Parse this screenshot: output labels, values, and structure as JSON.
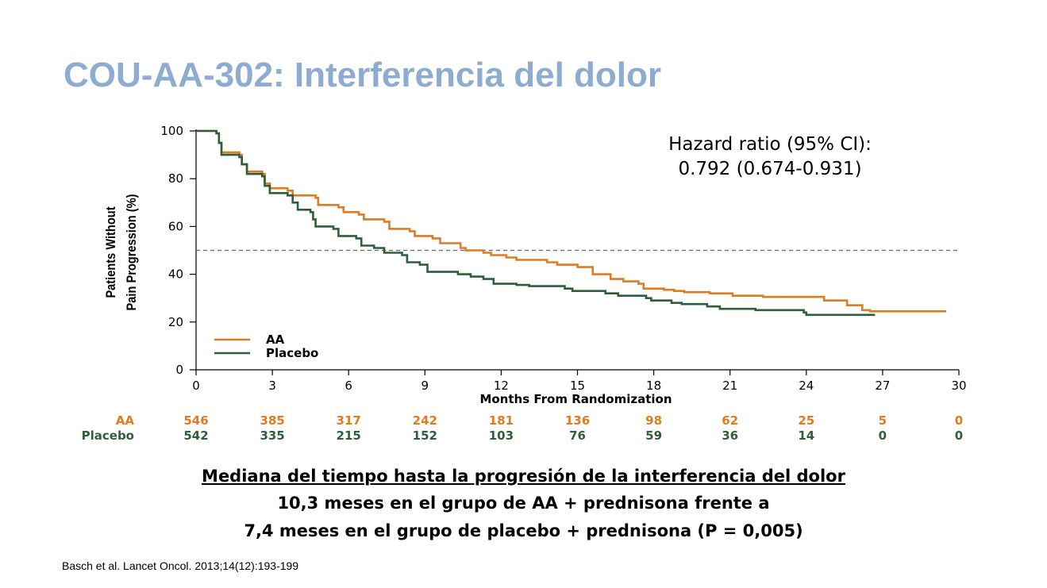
{
  "slide": {
    "title": "COU-AA-302: Interferencia del dolor",
    "caption_line1": "Mediana del tiempo hasta la progresión de la interferencia del dolor",
    "caption_line2": "10,3 meses en el grupo de AA + prednisona frente a",
    "caption_line3": "7,4 meses en el grupo de placebo + prednisona (P = 0,005)",
    "citation": "Basch et al. Lancet Oncol. 2013;14(12):193-199"
  },
  "chart_data": {
    "type": "line",
    "step": true,
    "xlabel": "Months From Randomization",
    "ylabel_line1": "Patients Without",
    "ylabel_line2": "Pain Progression (%)",
    "xlim": [
      0,
      30
    ],
    "ylim": [
      0,
      100
    ],
    "x_ticks": [
      0,
      3,
      6,
      9,
      12,
      15,
      18,
      21,
      24,
      27,
      30
    ],
    "y_ticks": [
      0,
      20,
      40,
      60,
      80,
      100
    ],
    "grid": false,
    "reference_line_y": 50,
    "annotation_line1": "Hazard ratio (95% CI):",
    "annotation_line2": "0.792 (0.674-0.931)",
    "legend_position": "bottom-left",
    "series": [
      {
        "name": "AA",
        "color": "#e07b22",
        "points": [
          [
            0,
            100
          ],
          [
            0.8,
            99
          ],
          [
            0.9,
            95
          ],
          [
            1.0,
            91
          ],
          [
            1.7,
            90
          ],
          [
            1.8,
            86
          ],
          [
            2.0,
            83
          ],
          [
            2.6,
            82
          ],
          [
            2.7,
            78
          ],
          [
            2.9,
            76
          ],
          [
            3.6,
            75
          ],
          [
            3.8,
            73
          ],
          [
            4.7,
            72
          ],
          [
            4.8,
            69
          ],
          [
            5.6,
            68
          ],
          [
            5.8,
            66
          ],
          [
            6.4,
            65
          ],
          [
            6.6,
            63
          ],
          [
            7.4,
            62
          ],
          [
            7.6,
            59
          ],
          [
            8.4,
            58
          ],
          [
            8.6,
            56
          ],
          [
            9.3,
            55
          ],
          [
            9.6,
            53
          ],
          [
            10.4,
            51
          ],
          [
            10.6,
            50
          ],
          [
            11.3,
            49
          ],
          [
            11.6,
            48
          ],
          [
            12.2,
            47
          ],
          [
            12.6,
            46
          ],
          [
            13.8,
            45
          ],
          [
            14.2,
            44
          ],
          [
            15.0,
            43
          ],
          [
            15.6,
            40
          ],
          [
            16.3,
            38
          ],
          [
            16.8,
            37
          ],
          [
            17.4,
            36
          ],
          [
            17.6,
            34
          ],
          [
            18.4,
            33.5
          ],
          [
            18.8,
            33
          ],
          [
            19.2,
            32.5
          ],
          [
            20.2,
            32
          ],
          [
            21.1,
            31
          ],
          [
            22.3,
            30.5
          ],
          [
            24.7,
            29
          ],
          [
            25.6,
            27
          ],
          [
            26.2,
            25
          ],
          [
            26.5,
            24.5
          ],
          [
            27.0,
            24.5
          ],
          [
            29.5,
            24.5
          ]
        ]
      },
      {
        "name": "Placebo",
        "color": "#2f5e3c",
        "points": [
          [
            0,
            100
          ],
          [
            0.8,
            99
          ],
          [
            0.9,
            95
          ],
          [
            1.0,
            90
          ],
          [
            1.7,
            89
          ],
          [
            1.8,
            86
          ],
          [
            2.0,
            82
          ],
          [
            2.6,
            81
          ],
          [
            2.7,
            77
          ],
          [
            2.9,
            74
          ],
          [
            3.6,
            73
          ],
          [
            3.8,
            70
          ],
          [
            4.0,
            67
          ],
          [
            4.5,
            66
          ],
          [
            4.6,
            63
          ],
          [
            4.7,
            60
          ],
          [
            5.4,
            59
          ],
          [
            5.6,
            56
          ],
          [
            6.3,
            55
          ],
          [
            6.5,
            52
          ],
          [
            7.0,
            51
          ],
          [
            7.4,
            49
          ],
          [
            8.1,
            48
          ],
          [
            8.3,
            45
          ],
          [
            8.8,
            44
          ],
          [
            9.1,
            41
          ],
          [
            10.3,
            40
          ],
          [
            10.8,
            39
          ],
          [
            11.3,
            38
          ],
          [
            11.7,
            36
          ],
          [
            12.6,
            35.5
          ],
          [
            13.1,
            35
          ],
          [
            14.5,
            34
          ],
          [
            14.8,
            33
          ],
          [
            16.1,
            32
          ],
          [
            16.6,
            31
          ],
          [
            17.7,
            30
          ],
          [
            17.9,
            29
          ],
          [
            18.7,
            28
          ],
          [
            19.1,
            27.5
          ],
          [
            20.1,
            26.5
          ],
          [
            20.6,
            25.5
          ],
          [
            22.0,
            25
          ],
          [
            23.9,
            24
          ],
          [
            24.0,
            23
          ],
          [
            26.7,
            23
          ]
        ]
      }
    ],
    "risk_table": {
      "rows": [
        {
          "name": "AA",
          "color": "#e07b22",
          "values": [
            "546",
            "385",
            "317",
            "242",
            "181",
            "136",
            "98",
            "62",
            "25",
            "5",
            "0"
          ]
        },
        {
          "name": "Placebo",
          "color": "#2f5e3c",
          "values": [
            "542",
            "335",
            "215",
            "152",
            "103",
            "76",
            "59",
            "36",
            "14",
            "0",
            "0"
          ]
        }
      ]
    }
  }
}
